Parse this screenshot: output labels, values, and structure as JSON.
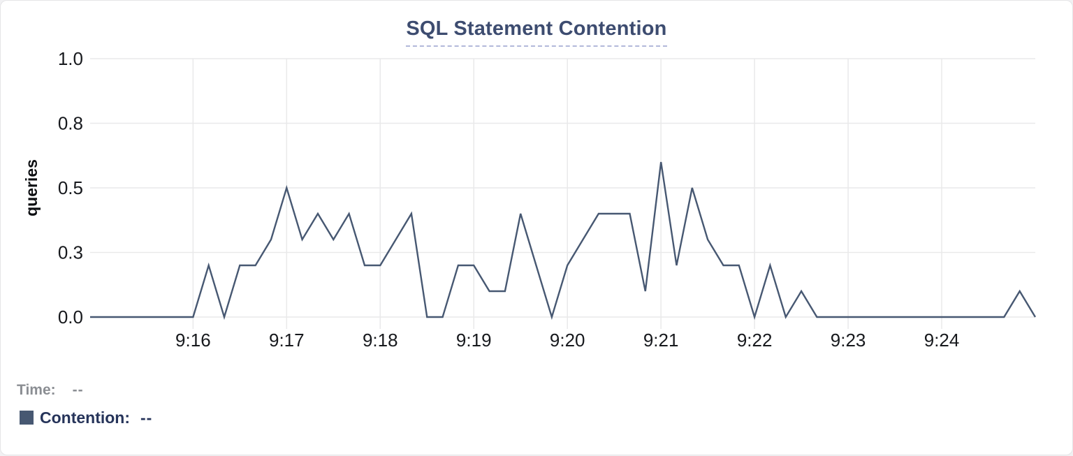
{
  "chart_data": {
    "type": "line",
    "title": "SQL Statement Contention",
    "ylabel": "queries",
    "grid": true,
    "legend_position": "bottom-left",
    "ylim": [
      0,
      1
    ],
    "y_ticks": [
      {
        "value": 0,
        "label": "0.0"
      },
      {
        "value": 0.25,
        "label": "0.3"
      },
      {
        "value": 0.5,
        "label": "0.5"
      },
      {
        "value": 0.75,
        "label": "0.8"
      },
      {
        "value": 1,
        "label": "1.0"
      }
    ],
    "x_tick_labels": [
      "9:16",
      "9:17",
      "9:18",
      "9:19",
      "9:20",
      "9:21",
      "9:22",
      "9:23",
      "9:24"
    ],
    "x_range_estimate": [
      "9:14:54",
      "9:25:00"
    ],
    "series": [
      {
        "name": "Contention",
        "color": "#475872",
        "x": [
          "9:15:00",
          "9:15:10",
          "9:15:20",
          "9:15:30",
          "9:15:40",
          "9:15:50",
          "9:16:00",
          "9:16:10",
          "9:16:20",
          "9:16:30",
          "9:16:40",
          "9:16:50",
          "9:17:00",
          "9:17:10",
          "9:17:20",
          "9:17:30",
          "9:17:40",
          "9:17:50",
          "9:18:00",
          "9:18:10",
          "9:18:20",
          "9:18:30",
          "9:18:40",
          "9:18:50",
          "9:19:00",
          "9:19:10",
          "9:19:20",
          "9:19:30",
          "9:19:40",
          "9:19:50",
          "9:20:00",
          "9:20:10",
          "9:20:20",
          "9:20:30",
          "9:20:40",
          "9:20:50",
          "9:21:00",
          "9:21:10",
          "9:21:20",
          "9:21:30",
          "9:21:40",
          "9:21:50",
          "9:22:00",
          "9:22:10",
          "9:22:20",
          "9:22:30",
          "9:22:40",
          "9:22:50",
          "9:23:00",
          "9:23:10",
          "9:23:20",
          "9:23:30",
          "9:23:40",
          "9:23:50",
          "9:24:00",
          "9:24:10",
          "9:24:20",
          "9:24:30",
          "9:24:40",
          "9:24:50",
          "9:25:00"
        ],
        "values": [
          0,
          0,
          0,
          0,
          0,
          0,
          0,
          0.2,
          0,
          0.2,
          0.2,
          0.3,
          0.5,
          0.3,
          0.4,
          0.3,
          0.4,
          0.2,
          0.2,
          0.3,
          0.4,
          0,
          0,
          0.2,
          0.2,
          0.1,
          0.1,
          0.4,
          0.2,
          0,
          0.2,
          0.3,
          0.4,
          0.4,
          0.4,
          0.1,
          0.6,
          0.2,
          0.5,
          0.3,
          0.2,
          0.2,
          0,
          0.2,
          0,
          0.1,
          0,
          0,
          0,
          0,
          0,
          0,
          0,
          0,
          0,
          0,
          0,
          0,
          0,
          0.1,
          0
        ]
      }
    ]
  },
  "legend": {
    "time_label": "Time:",
    "time_value": "--",
    "contention_label": "Contention:",
    "contention_value": "--",
    "swatch_color": "#475872"
  }
}
